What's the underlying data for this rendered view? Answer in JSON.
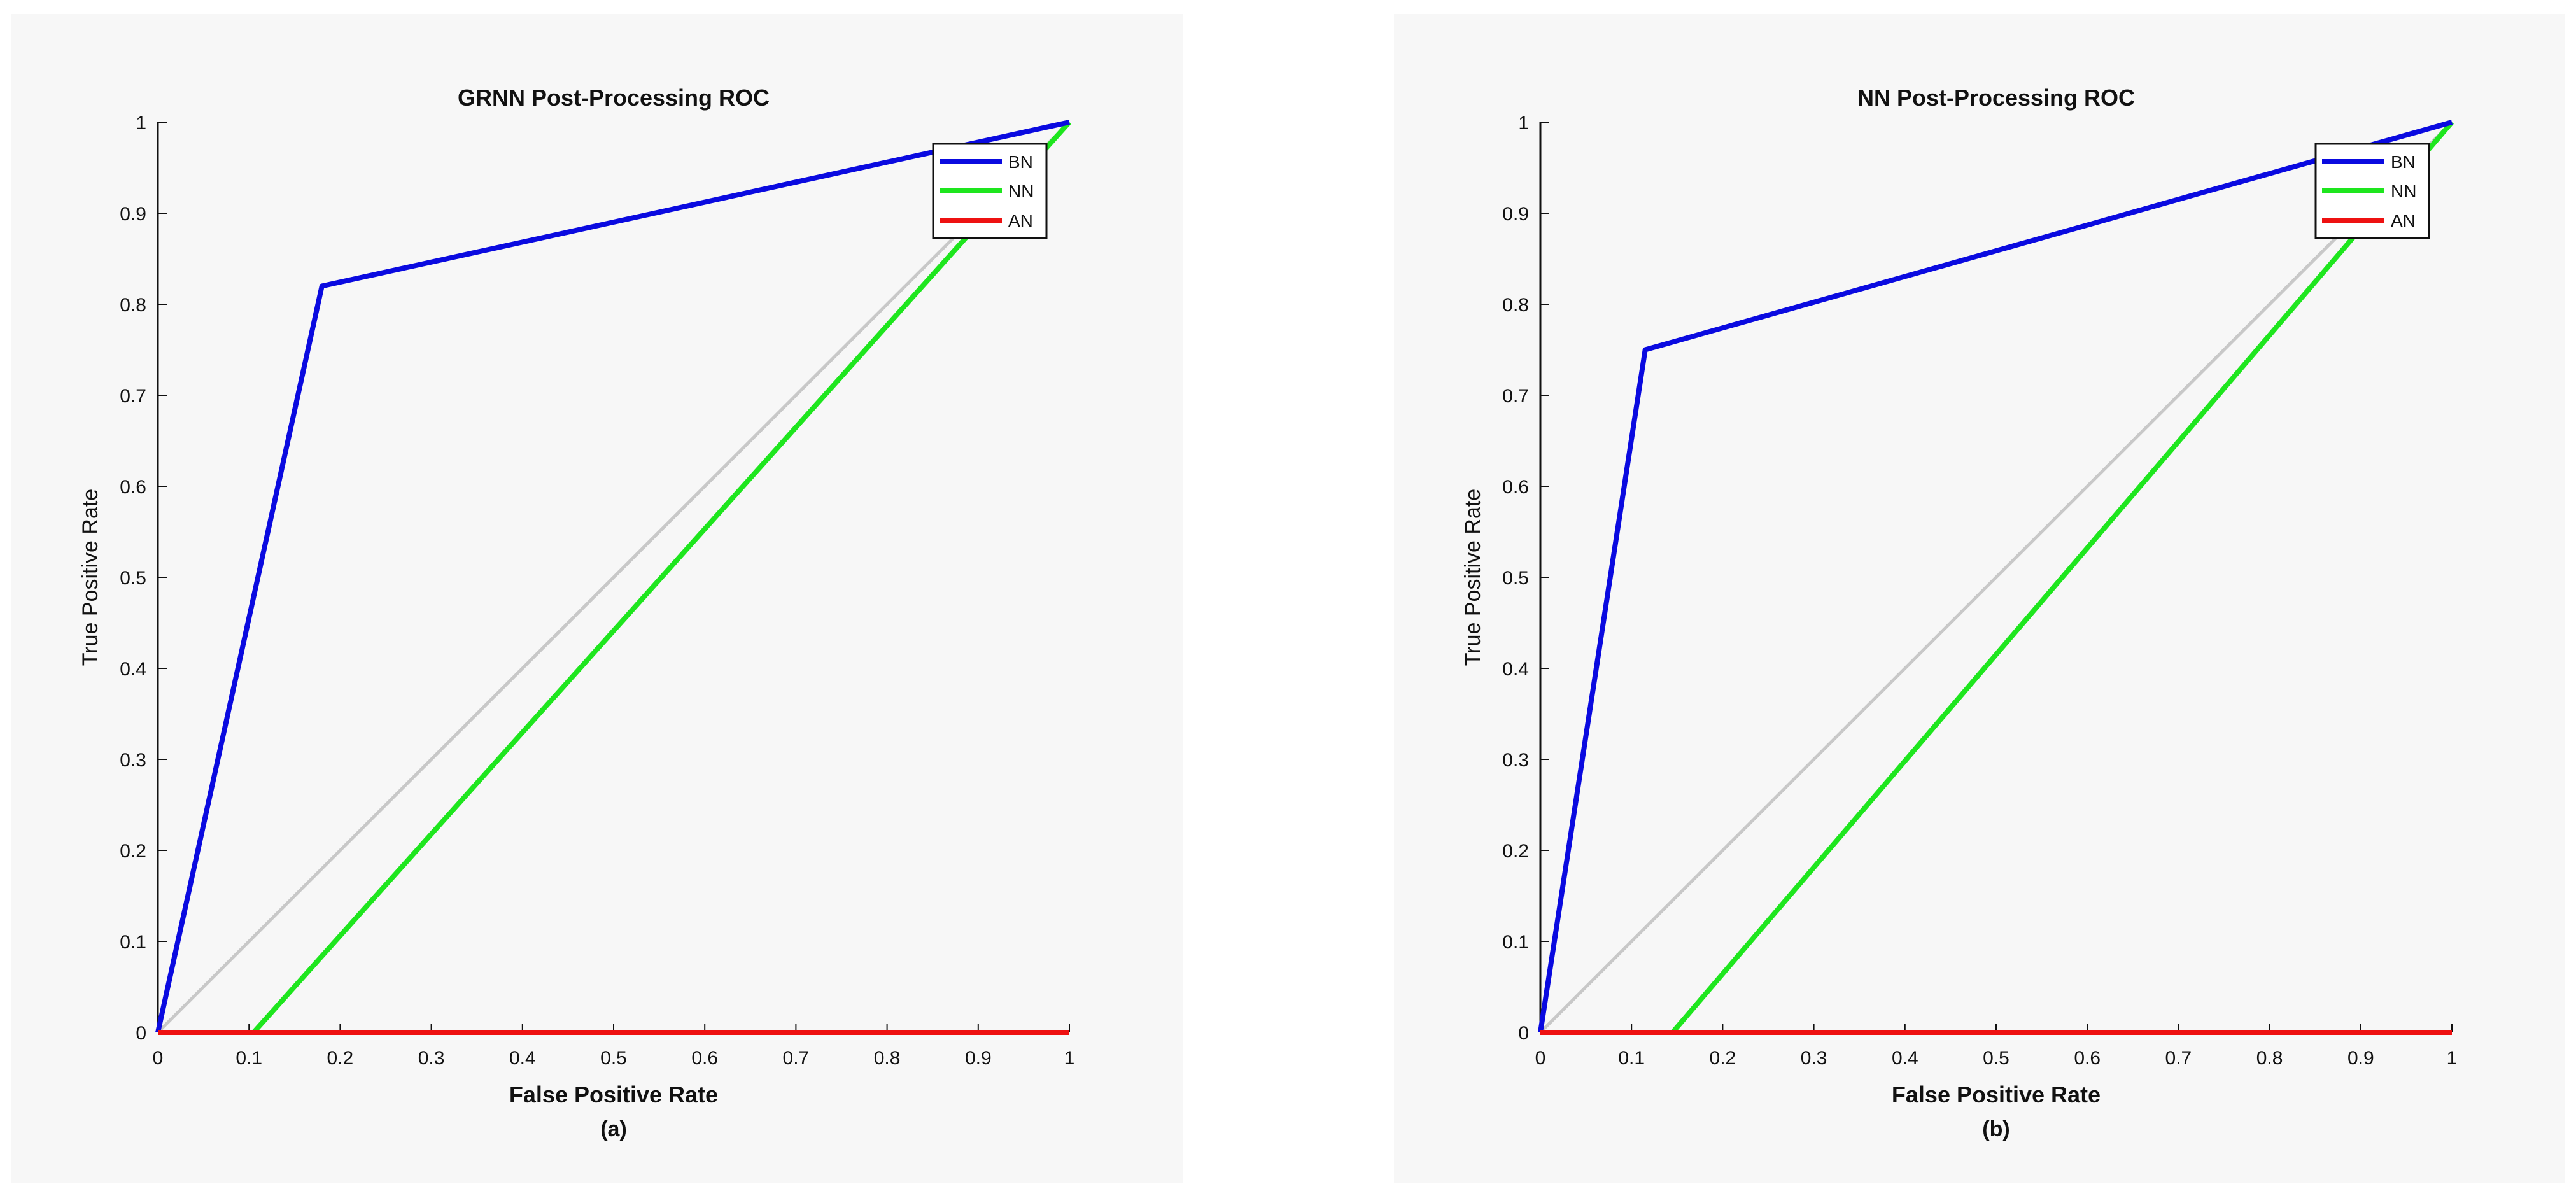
{
  "colors": {
    "BN": "#0a0ae0",
    "NN": "#1ee61e",
    "AN": "#ee1111",
    "diagonal": "#c8c8c8",
    "axis": "#111111",
    "background": "#f7f7f7"
  },
  "chart_data": [
    {
      "type": "line",
      "title": "GRNN Post-Processing ROC",
      "xlabel": "False Positive Rate",
      "ylabel": "True Positive Rate",
      "caption": "(a)",
      "xlim": [
        0,
        1
      ],
      "ylim": [
        0,
        1
      ],
      "x_ticks": [
        "0",
        "0.1",
        "0.2",
        "0.3",
        "0.4",
        "0.5",
        "0.6",
        "0.7",
        "0.8",
        "0.9",
        "1"
      ],
      "y_ticks": [
        "0",
        "0.1",
        "0.2",
        "0.3",
        "0.4",
        "0.5",
        "0.6",
        "0.7",
        "0.8",
        "0.9",
        "1"
      ],
      "grid": false,
      "legend_position": "top-right",
      "reference_line": [
        [
          0,
          0
        ],
        [
          1,
          1
        ]
      ],
      "series": [
        {
          "name": "BN",
          "color": "#0a0ae0",
          "points": [
            [
              0,
              0
            ],
            [
              0.18,
              0.82
            ],
            [
              1,
              1
            ]
          ]
        },
        {
          "name": "NN",
          "color": "#1ee61e",
          "points": [
            [
              0.105,
              0
            ],
            [
              1,
              1
            ]
          ]
        },
        {
          "name": "AN",
          "color": "#ee1111",
          "points": [
            [
              0,
              0
            ],
            [
              1,
              0
            ]
          ]
        }
      ]
    },
    {
      "type": "line",
      "title": "NN Post-Processing ROC",
      "xlabel": "False Positive Rate",
      "ylabel": "True Positive Rate",
      "caption": "(b)",
      "xlim": [
        0,
        1
      ],
      "ylim": [
        0,
        1
      ],
      "x_ticks": [
        "0",
        "0.1",
        "0.2",
        "0.3",
        "0.4",
        "0.5",
        "0.6",
        "0.7",
        "0.8",
        "0.9",
        "1"
      ],
      "y_ticks": [
        "0",
        "0.1",
        "0.2",
        "0.3",
        "0.4",
        "0.5",
        "0.6",
        "0.7",
        "0.8",
        "0.9",
        "1"
      ],
      "grid": false,
      "legend_position": "top-right",
      "reference_line": [
        [
          0,
          0
        ],
        [
          1,
          1
        ]
      ],
      "series": [
        {
          "name": "BN",
          "color": "#0a0ae0",
          "points": [
            [
              0,
              0
            ],
            [
              0.115,
              0.75
            ],
            [
              1,
              1
            ]
          ]
        },
        {
          "name": "NN",
          "color": "#1ee61e",
          "points": [
            [
              0.145,
              0
            ],
            [
              1,
              1
            ]
          ]
        },
        {
          "name": "AN",
          "color": "#ee1111",
          "points": [
            [
              0,
              0
            ],
            [
              1,
              0
            ]
          ]
        }
      ]
    }
  ]
}
